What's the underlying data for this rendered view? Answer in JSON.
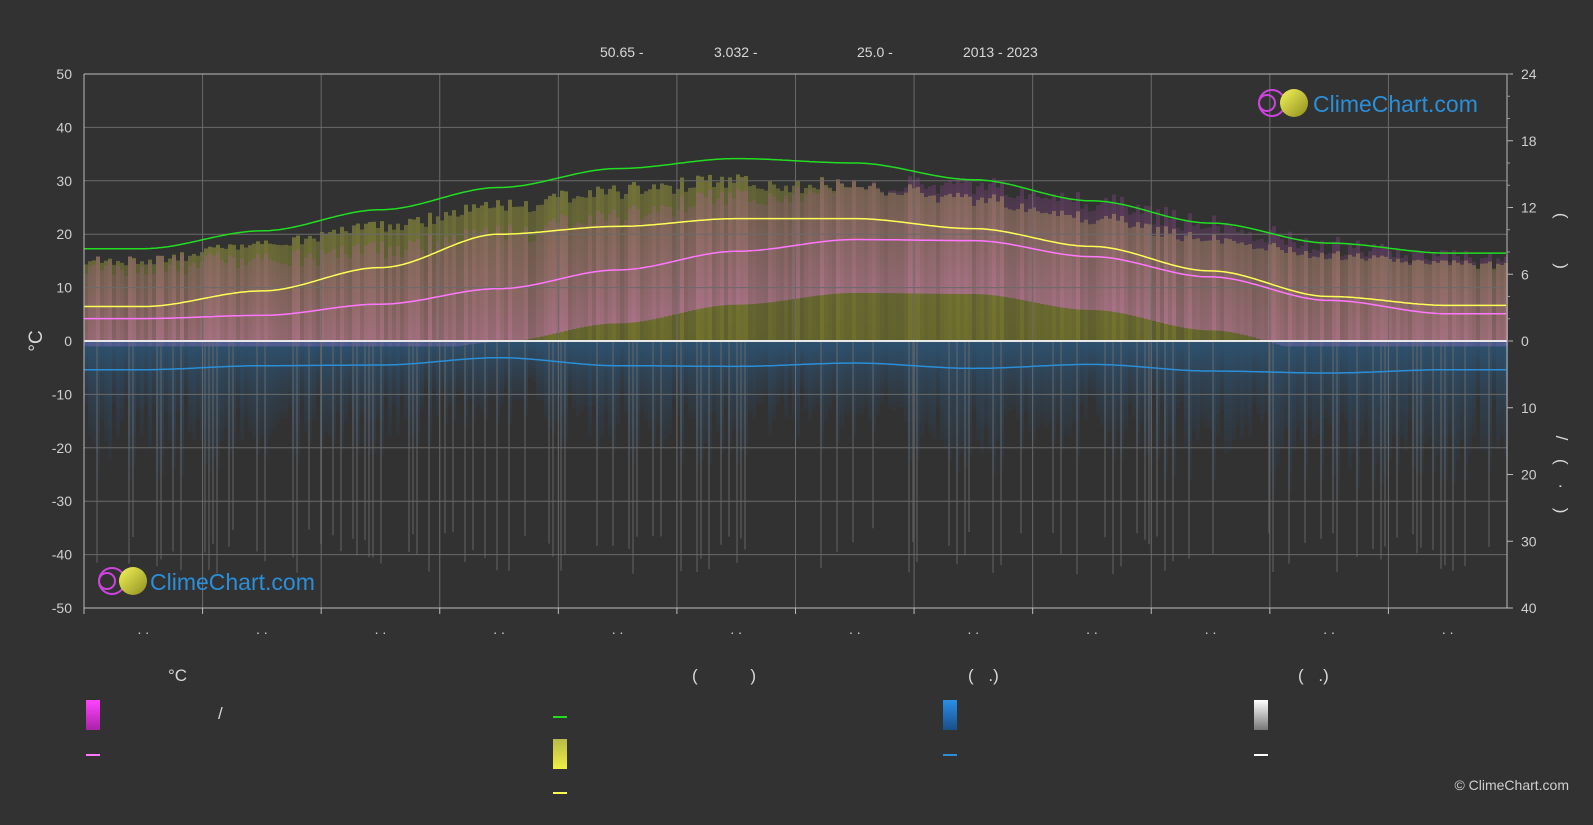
{
  "header": {
    "lat": "50.65 -",
    "lon": "3.032 -",
    "elev": "25.0 -",
    "years": "2013 - 2023"
  },
  "logo_text": "ClimeChart.com",
  "copyright": "© ClimeChart.com",
  "colors": {
    "background": "#323232",
    "daylight": "#22dd22",
    "sunshine": "#ffff55",
    "mean_temp": "#ff77ff",
    "precip": "#2a8fd8",
    "logo_text": "#2a8fd8"
  },
  "legend": {
    "col1_header": "°C",
    "col1_sep": "/",
    "col2_header": "( )",
    "col3_header": "( .)",
    "col4_header": "( .)"
  },
  "chart_data": {
    "type": "line",
    "x_ticks": [
      ". .",
      ". .",
      ". .",
      ". .",
      ". .",
      ". .",
      ". .",
      ". .",
      ". .",
      ". .",
      ". .",
      ". ."
    ],
    "ylabel_left": "°C",
    "ylabel_right_top": "( )",
    "ylabel_right_bottom": "/ ( · )",
    "y_left_lim": [
      -50,
      50
    ],
    "y_left_ticks": [
      50,
      40,
      30,
      20,
      10,
      0,
      -10,
      -20,
      -30,
      -40,
      -50
    ],
    "y_right_top_lim": [
      0,
      24
    ],
    "y_right_top_ticks": [
      24,
      18,
      12,
      6,
      0
    ],
    "y_right_bottom_lim": [
      0,
      40
    ],
    "y_right_bottom_ticks": [
      10,
      20,
      30,
      40
    ],
    "grid": true,
    "months": [
      1,
      2,
      3,
      4,
      5,
      6,
      7,
      8,
      9,
      10,
      11,
      12
    ],
    "series": [
      {
        "key": "daylight",
        "axis": "hours",
        "values": [
          8.3,
          9.9,
          11.8,
          13.8,
          15.5,
          16.4,
          16.0,
          14.5,
          12.6,
          10.6,
          8.8,
          7.9
        ]
      },
      {
        "key": "sunshine",
        "axis": "hours",
        "values": [
          3.1,
          4.5,
          6.6,
          9.6,
          10.3,
          11.0,
          11.0,
          10.1,
          8.5,
          6.3,
          4.0,
          3.2
        ]
      },
      {
        "key": "mean_temp",
        "axis": "celsius",
        "values": [
          4.2,
          4.8,
          6.9,
          9.8,
          13.3,
          16.8,
          19.0,
          18.8,
          15.8,
          12.0,
          7.6,
          5.1
        ]
      },
      {
        "key": "precip",
        "axis": "mm",
        "values": [
          4.3,
          3.7,
          3.6,
          2.5,
          3.7,
          3.8,
          3.3,
          4.1,
          3.5,
          4.5,
          4.8,
          4.3
        ]
      }
    ]
  }
}
